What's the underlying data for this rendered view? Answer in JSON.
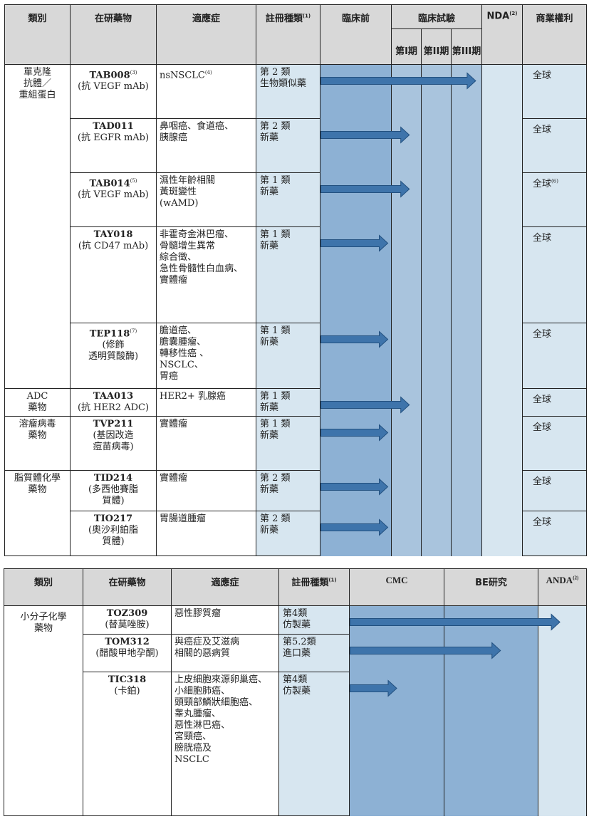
{
  "colors": {
    "header_bg": "#d8d8d8",
    "light_blue": "#d7e6f0",
    "preclinical_blue": "#8db1d4",
    "phase_blue": "#a9c4dd",
    "arrow_blue": "#3e74ab",
    "arrow_edge": "#22507f"
  },
  "table1": {
    "headers": {
      "category": "類別",
      "drug": "在研藥物",
      "indication": "適應症",
      "registration": "註冊種類",
      "registration_note": "(1)",
      "preclinical": "臨床前",
      "clinical": "臨床試驗",
      "nda": "NDA",
      "nda_note": "(2)",
      "rights": "商業權利",
      "phase1": "第I期",
      "phase2": "第II期",
      "phase3": "第III期"
    },
    "rows": [
      {
        "drug": "TAB008",
        "drug_note": "(3)",
        "target": "(抗 VEGF mAb)",
        "indication": "nsNSCLC",
        "indication_note": "(4)",
        "registration": [
          "第 2 類",
          "生物類似藥"
        ],
        "rights": "全球",
        "rights_note": "",
        "progress": "Phase III"
      },
      {
        "drug": "TAD011",
        "drug_note": "",
        "target": "(抗 EGFR mAb)",
        "indication_lines": [
          "鼻咽癌、食道癌、",
          "胰腺癌"
        ],
        "registration": [
          "第 2 類",
          "新藥"
        ],
        "rights": "全球",
        "rights_note": "",
        "progress": "Phase I"
      },
      {
        "drug": "TAB014",
        "drug_note": "(5)",
        "target": "(抗 VEGF mAb)",
        "indication_lines": [
          "濕性年齡相關",
          "黃斑變性",
          "(wAMD)"
        ],
        "registration": [
          "第 1 類",
          "新藥"
        ],
        "rights": "全球",
        "rights_note": "(6)",
        "progress": "Phase I"
      },
      {
        "drug": "TAY018",
        "drug_note": "",
        "target": "(抗 CD47  mAb)",
        "indication_lines": [
          "非霍奇金淋巴瘤、",
          "骨髓增生異常",
          "綜合徵、",
          "急性骨髓性白血病、",
          "實體瘤"
        ],
        "registration": [
          "第 1 類",
          "新藥"
        ],
        "rights": "全球",
        "rights_note": "",
        "progress": "Pre-clinical"
      },
      {
        "drug": "TEP118",
        "drug_note": "(7)",
        "target_lines": [
          "(修飾",
          "透明質酸酶)"
        ],
        "indication_lines": [
          "膽道癌、",
          "膽囊腫瘤、",
          "轉移性癌 、",
          "NSCLC、",
          "胃癌"
        ],
        "registration": [
          "第 1 類",
          "新藥"
        ],
        "rights": "全球",
        "rights_note": "",
        "progress": "Pre-clinical"
      },
      {
        "drug": "TAA013",
        "drug_note": "",
        "target": "(抗 HER2 ADC)",
        "indication": "HER2+ 乳腺癌",
        "registration": [
          "第 1 類",
          "新藥"
        ],
        "rights": "全球",
        "rights_note": "",
        "progress": "Phase I"
      },
      {
        "drug": "TVP211",
        "drug_note": "",
        "target_lines": [
          "(基因改造",
          "痘苗病毒)"
        ],
        "indication": "實體瘤",
        "registration": [
          "第 1 類",
          "新藥"
        ],
        "rights": "全球",
        "rights_note": "",
        "progress": "Pre-clinical"
      },
      {
        "drug": "TID214",
        "drug_note": "",
        "target_lines": [
          "(多西他賽脂",
          "質體)"
        ],
        "indication": "實體瘤",
        "registration": [
          "第 2 類",
          "新藥"
        ],
        "rights": "全球",
        "rights_note": "",
        "progress": "Pre-clinical"
      },
      {
        "drug": "TIO217",
        "drug_note": "",
        "target_lines": [
          "(奧沙利鉑脂",
          "質體)"
        ],
        "indication": "胃腸道腫瘤",
        "registration": [
          "第 2 類",
          "新藥"
        ],
        "rights": "全球",
        "rights_note": "",
        "progress": "Pre-clinical"
      }
    ],
    "categories": [
      {
        "lines": [
          "單克隆",
          "抗體／",
          "重組蛋白"
        ]
      },
      {
        "lines": [
          "ADC",
          "藥物"
        ]
      },
      {
        "lines": [
          "溶瘤病毒",
          "藥物"
        ]
      },
      {
        "lines": [
          "脂質體化學",
          "藥物"
        ]
      }
    ]
  },
  "table2": {
    "headers": {
      "category": "類別",
      "drug": "在研藥物",
      "indication": "適應症",
      "registration": "註冊種類",
      "registration_note": "(1)",
      "cmc": "CMC",
      "be": "BE研究",
      "anda": "ANDA",
      "anda_note": "(2)"
    },
    "category": [
      "小分子化學",
      "藥物"
    ],
    "rows": [
      {
        "drug": "TOZ309",
        "target": "(替莫唑胺)",
        "indication": "惡性膠質瘤",
        "registration": [
          "第4類",
          "仿製藥"
        ],
        "progress": "ANDA"
      },
      {
        "drug": "TOM312",
        "target": "(醋酸甲地孕酮)",
        "indication_lines": [
          "與癌症及艾滋病",
          "相關的惡病質"
        ],
        "registration": [
          "第5.2類",
          "進口藥"
        ],
        "progress": "BE"
      },
      {
        "drug": "TIC318",
        "target": "(卡鉑)",
        "indication_lines": [
          "上皮細胞來源卵巢癌、",
          "小細胞肺癌、",
          "頭頸部鱗狀細胞癌、",
          "睾丸腫瘤、",
          "惡性淋巴癌、",
          "宮頸癌、",
          "膀胱癌及",
          "NSCLC"
        ],
        "registration": [
          "第4類",
          "仿製藥"
        ],
        "progress": "CMC"
      }
    ]
  }
}
